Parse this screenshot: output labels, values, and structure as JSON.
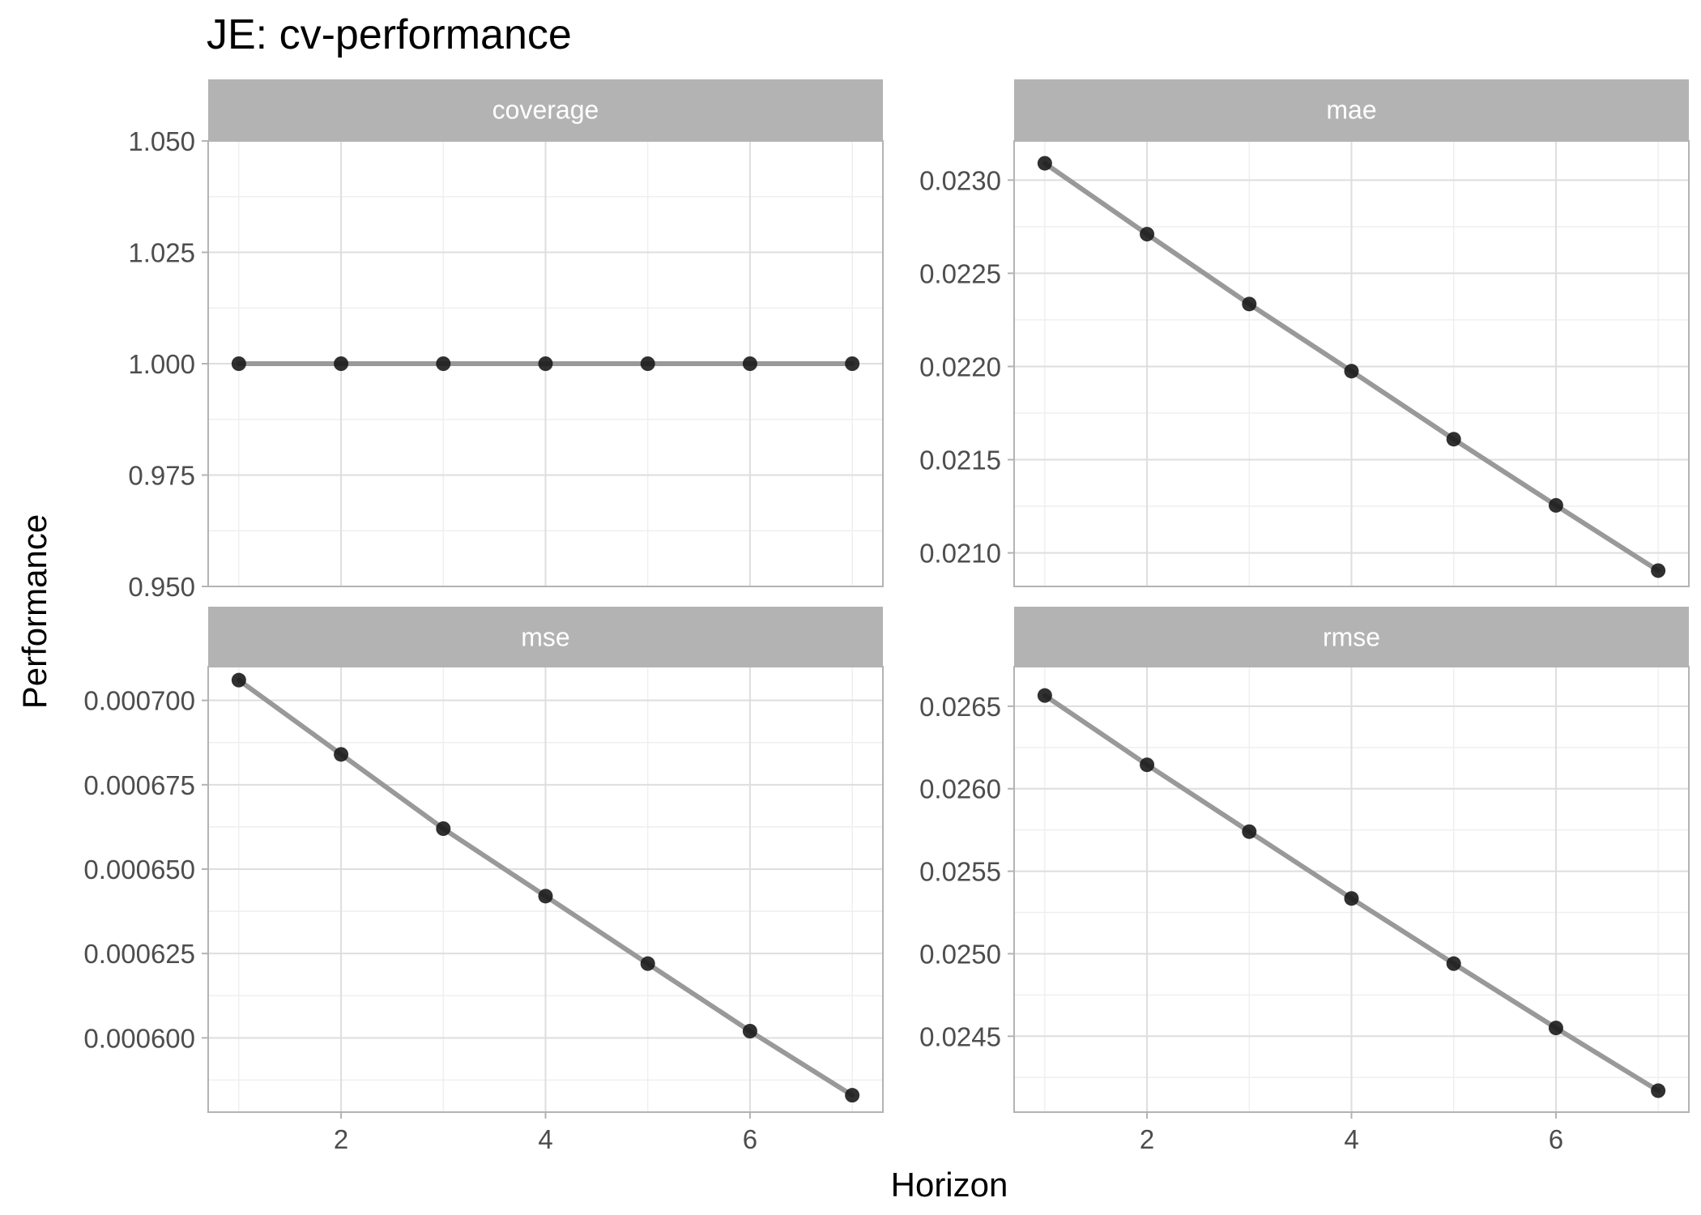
{
  "chart_data": {
    "type": "line",
    "title": "JE: cv-performance",
    "xlabel": "Horizon",
    "ylabel": "Performance",
    "grid": true,
    "legend": "none",
    "x": [
      1,
      2,
      3,
      4,
      5,
      6,
      7
    ],
    "x_ticks": [
      2,
      4,
      6
    ],
    "x_tick_labels": [
      "2",
      "4",
      "6"
    ],
    "xlim": [
      0.7,
      7.3
    ],
    "colors": {
      "line": "#999999",
      "point": "#1a1a1a",
      "strip_bg": "#b3b3b3",
      "strip_text": "#ffffff",
      "grid_major": "#dedede",
      "grid_minor": "#efefef",
      "panel_border": "#b3b3b3",
      "tick_text": "#4d4d4d",
      "axis_title": "#000000"
    },
    "panels": [
      {
        "name": "coverage",
        "values": [
          1.0,
          1.0,
          1.0,
          1.0,
          1.0,
          1.0,
          1.0
        ],
        "ylim": [
          0.95,
          1.05
        ],
        "y_ticks": [
          0.95,
          0.975,
          1.0,
          1.025,
          1.05
        ],
        "y_tick_labels": [
          "0.950",
          "0.975",
          "1.000",
          "1.025",
          "1.050"
        ]
      },
      {
        "name": "mae",
        "values": [
          0.02309,
          0.02271,
          0.022335,
          0.021975,
          0.02161,
          0.021255,
          0.020905
        ],
        "ylim": [
          0.02082,
          0.02321
        ],
        "y_ticks": [
          0.021,
          0.0215,
          0.022,
          0.0225,
          0.023
        ],
        "y_tick_labels": [
          "0.0210",
          "0.0215",
          "0.0220",
          "0.0225",
          "0.0230"
        ]
      },
      {
        "name": "mse",
        "values": [
          0.000706,
          0.000684,
          0.000662,
          0.000642,
          0.000622,
          0.000602,
          0.000583
        ],
        "ylim": [
          0.000578,
          0.00071
        ],
        "y_ticks": [
          0.0006,
          0.000625,
          0.00065,
          0.000675,
          0.0007
        ],
        "y_tick_labels": [
          "0.000600",
          "0.000625",
          "0.000650",
          "0.000675",
          "0.000700"
        ]
      },
      {
        "name": "rmse",
        "values": [
          0.026565,
          0.026145,
          0.02574,
          0.025335,
          0.02494,
          0.02455,
          0.02417
        ],
        "ylim": [
          0.02404,
          0.02674
        ],
        "y_ticks": [
          0.0245,
          0.025,
          0.0255,
          0.026,
          0.0265
        ],
        "y_tick_labels": [
          "0.0245",
          "0.0250",
          "0.0255",
          "0.0260",
          "0.0265"
        ]
      }
    ]
  }
}
